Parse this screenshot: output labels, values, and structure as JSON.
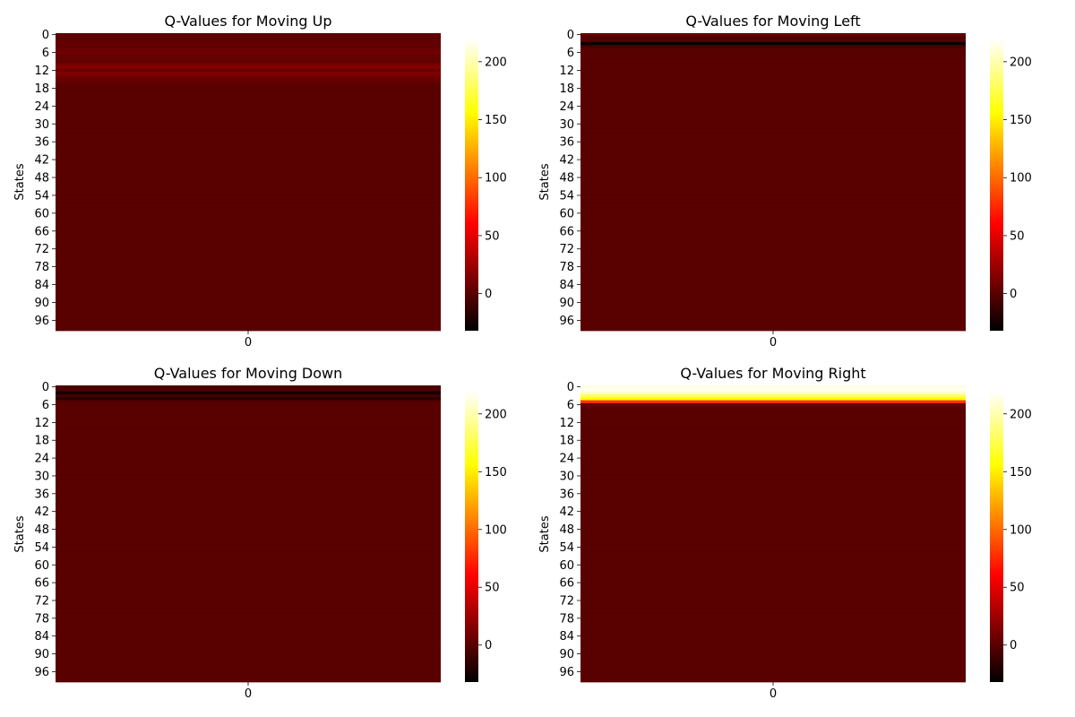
{
  "chart_data": [
    {
      "type": "heatmap",
      "title": "Q-Values for Moving Up",
      "ylabel": "States",
      "xlabel": "",
      "x_tick_labels": [
        "0"
      ],
      "y_tick_labels": [
        "0",
        "6",
        "12",
        "18",
        "24",
        "30",
        "36",
        "42",
        "48",
        "54",
        "60",
        "66",
        "72",
        "78",
        "84",
        "90",
        "96"
      ],
      "n_states": 100,
      "default_value": 0,
      "overrides": [
        [
          0,
          2
        ],
        [
          1,
          2
        ],
        [
          2,
          3
        ],
        [
          3,
          4
        ],
        [
          4,
          3
        ],
        [
          5,
          6
        ],
        [
          6,
          8
        ],
        [
          7,
          4
        ],
        [
          8,
          4
        ],
        [
          9,
          3
        ],
        [
          10,
          10
        ],
        [
          11,
          16
        ],
        [
          12,
          6
        ],
        [
          13,
          14
        ],
        [
          14,
          9
        ],
        [
          15,
          6
        ],
        [
          16,
          3
        ],
        [
          17,
          1
        ]
      ],
      "colorbar": {
        "range": [
          -32,
          220
        ],
        "ticks": [
          0,
          50,
          100,
          150,
          200
        ],
        "tick_labels": [
          "0",
          "50",
          "100",
          "150",
          "200"
        ]
      }
    },
    {
      "type": "heatmap",
      "title": "Q-Values for Moving Left",
      "ylabel": "States",
      "xlabel": "",
      "x_tick_labels": [
        "0"
      ],
      "y_tick_labels": [
        "0",
        "6",
        "12",
        "18",
        "24",
        "30",
        "36",
        "42",
        "48",
        "54",
        "60",
        "66",
        "72",
        "78",
        "84",
        "90",
        "96"
      ],
      "n_states": 100,
      "default_value": 0,
      "overrides": [
        [
          0,
          3
        ],
        [
          1,
          -4
        ],
        [
          2,
          -2
        ],
        [
          3,
          -30
        ],
        [
          4,
          -6
        ],
        [
          5,
          -1
        ]
      ],
      "colorbar": {
        "range": [
          -32,
          220
        ],
        "ticks": [
          0,
          50,
          100,
          150,
          200
        ],
        "tick_labels": [
          "0",
          "50",
          "100",
          "150",
          "200"
        ]
      }
    },
    {
      "type": "heatmap",
      "title": "Q-Values for Moving Down",
      "ylabel": "States",
      "xlabel": "",
      "x_tick_labels": [
        "0"
      ],
      "y_tick_labels": [
        "0",
        "6",
        "12",
        "18",
        "24",
        "30",
        "36",
        "42",
        "48",
        "54",
        "60",
        "66",
        "72",
        "78",
        "84",
        "90",
        "96"
      ],
      "n_states": 100,
      "default_value": 0,
      "overrides": [
        [
          0,
          -5
        ],
        [
          1,
          -3
        ],
        [
          2,
          -25
        ],
        [
          3,
          -8
        ],
        [
          4,
          -18
        ],
        [
          5,
          -2
        ]
      ],
      "colorbar": {
        "range": [
          -32,
          220
        ],
        "ticks": [
          0,
          50,
          100,
          150,
          200
        ],
        "tick_labels": [
          "0",
          "50",
          "100",
          "150",
          "200"
        ]
      }
    },
    {
      "type": "heatmap",
      "title": "Q-Values for Moving Right",
      "ylabel": "States",
      "xlabel": "",
      "x_tick_labels": [
        "0"
      ],
      "y_tick_labels": [
        "0",
        "6",
        "12",
        "18",
        "24",
        "30",
        "36",
        "42",
        "48",
        "54",
        "60",
        "66",
        "72",
        "78",
        "84",
        "90",
        "96"
      ],
      "n_states": 100,
      "default_value": 0,
      "overrides": [
        [
          0,
          212
        ],
        [
          1,
          218
        ],
        [
          2,
          205
        ],
        [
          3,
          180
        ],
        [
          4,
          155
        ],
        [
          5,
          80
        ],
        [
          6,
          5
        ]
      ],
      "colorbar": {
        "range": [
          -32,
          220
        ],
        "ticks": [
          0,
          50,
          100,
          150,
          200
        ],
        "tick_labels": [
          "0",
          "50",
          "100",
          "150",
          "200"
        ]
      }
    }
  ]
}
